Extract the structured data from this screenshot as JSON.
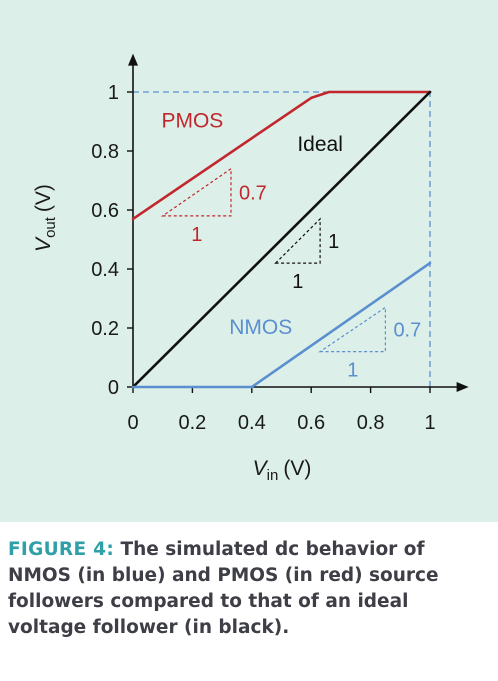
{
  "caption": {
    "lead": "FIGURE 4:",
    "text": "The simulated dc behavior of NMOS (in blue) and PMOS (in red) source followers compared to that of an ideal voltage follower (in black)."
  },
  "chart_data": {
    "type": "line",
    "xlabel_var": "V",
    "xlabel_sub": "in",
    "xlabel_unit": "(V)",
    "ylabel_var": "V",
    "ylabel_sub": "out",
    "ylabel_unit": "(V)",
    "xlim": [
      0,
      1.12
    ],
    "ylim": [
      0,
      1.12
    ],
    "x_ticks": [
      0,
      0.2,
      0.4,
      0.6,
      0.8,
      1
    ],
    "x_tick_labels": [
      "0",
      "0.2",
      "0.4",
      "0.6",
      "0.8",
      "1"
    ],
    "y_ticks": [
      0,
      0.2,
      0.4,
      0.6,
      0.8,
      1
    ],
    "y_tick_labels": [
      "0",
      "0.2",
      "0.4",
      "0.6",
      "0.8",
      "1"
    ],
    "grid": false,
    "series": [
      {
        "name": "PMOS",
        "color": "#c1272d",
        "points": [
          [
            0,
            0.57
          ],
          [
            0.6,
            0.98
          ],
          [
            0.66,
            1.0
          ],
          [
            1.0,
            1.0
          ]
        ]
      },
      {
        "name": "Ideal",
        "color": "#111111",
        "points": [
          [
            0,
            0
          ],
          [
            1.0,
            1.0
          ]
        ]
      },
      {
        "name": "NMOS",
        "color": "#5b8fd0",
        "points": [
          [
            0,
            0
          ],
          [
            0.4,
            0
          ],
          [
            1.0,
            0.42
          ]
        ]
      }
    ],
    "guides": {
      "color": "#5b8fd0",
      "lines": [
        [
          [
            0,
            1.0
          ],
          [
            1.0,
            1.0
          ]
        ],
        [
          [
            1.0,
            0
          ],
          [
            1.0,
            1.0
          ]
        ]
      ]
    },
    "slope_triangles": [
      {
        "series": "PMOS",
        "color": "#c1272d",
        "corners": [
          [
            0.1,
            0.58
          ],
          [
            0.33,
            0.58
          ],
          [
            0.33,
            0.74
          ]
        ],
        "run_label": "1",
        "rise_label": "0.7"
      },
      {
        "series": "Ideal",
        "color": "#111111",
        "corners": [
          [
            0.48,
            0.42
          ],
          [
            0.63,
            0.42
          ],
          [
            0.63,
            0.57
          ]
        ],
        "run_label": "1",
        "rise_label": "1"
      },
      {
        "series": "NMOS",
        "color": "#5b8fd0",
        "corners": [
          [
            0.63,
            0.12
          ],
          [
            0.85,
            0.12
          ],
          [
            0.85,
            0.27
          ]
        ],
        "run_label": "1",
        "rise_label": "0.7"
      }
    ],
    "annotations": [
      {
        "text": "PMOS",
        "color": "#c1272d",
        "x": 0.2,
        "y": 0.88
      },
      {
        "text": "Ideal",
        "color": "#111111",
        "x": 0.63,
        "y": 0.8
      },
      {
        "text": "NMOS",
        "color": "#5b8fd0",
        "x": 0.43,
        "y": 0.18
      }
    ]
  }
}
